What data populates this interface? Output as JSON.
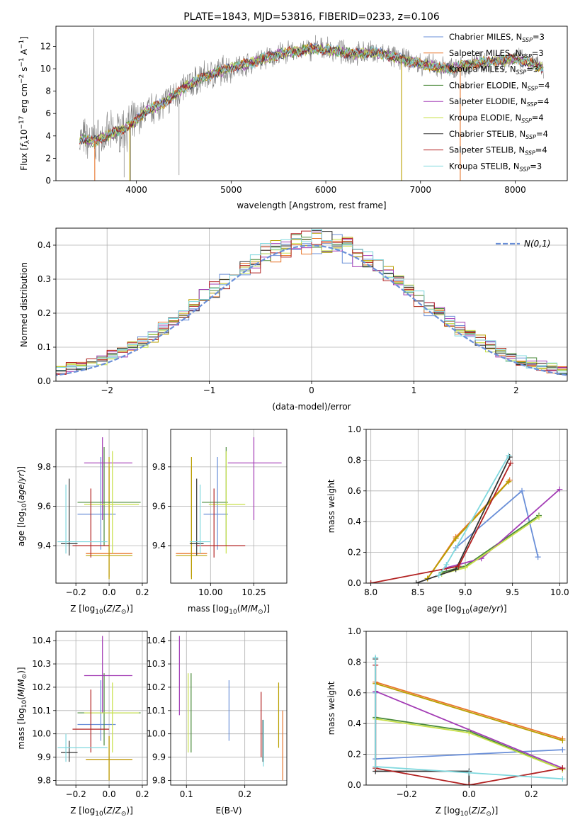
{
  "colors": {
    "chabrier_miles": "#6a8fd8",
    "salpeter_miles": "#e8762c",
    "kroupa_miles": "#b9a000",
    "chabrier_elodie": "#4a8a3a",
    "salpeter_elodie": "#a33cb5",
    "kroupa_elodie": "#c8e14a",
    "chabrier_stelib": "#333333",
    "salpeter_stelib": "#b22222",
    "kroupa_stelib": "#7fd8de",
    "gaussian": "#6a8fd8",
    "grid": "#b0b0b0"
  },
  "chart_data": [
    {
      "id": "spectrum",
      "type": "line",
      "title": "PLATE=1843, MJD=53816, FIBERID=0233, z=0.106",
      "xlabel": "wavelength [Angstrom, rest frame]",
      "ylabel": "Flux [f_λ 10^-17 erg cm^-2 s^-1 A^-1]",
      "xlim": [
        3150,
        8550
      ],
      "ylim": [
        0,
        13.8
      ],
      "xticks": [
        "4000",
        "5000",
        "6000",
        "7000",
        "8000"
      ],
      "yticks": [
        "0",
        "2",
        "4",
        "6",
        "8",
        "10",
        "12"
      ],
      "legend_position": "right",
      "legend": [
        {
          "key": "chabrier_miles",
          "label": "Chabrier MILES, N_SSP=3"
        },
        {
          "key": "salpeter_miles",
          "label": "Salpeter MILES, N_SSP=3"
        },
        {
          "key": "kroupa_miles",
          "label": "Kroupa MILES, N_SSP=3"
        },
        {
          "key": "chabrier_elodie",
          "label": "Chabrier ELODIE, N_SSP=4"
        },
        {
          "key": "salpeter_elodie",
          "label": "Salpeter ELODIE, N_SSP=4"
        },
        {
          "key": "kroupa_elodie",
          "label": "Kroupa ELODIE, N_SSP=4"
        },
        {
          "key": "chabrier_stelib",
          "label": "Chabrier STELIB, N_SSP=4"
        },
        {
          "key": "salpeter_stelib",
          "label": "Salpeter STELIB, N_SSP=4"
        },
        {
          "key": "kroupa_stelib",
          "label": "Kroupa STELIB, N_SSP=3"
        }
      ],
      "continuum": [
        [
          3400,
          3.8
        ],
        [
          3550,
          3.5
        ],
        [
          3750,
          4.2
        ],
        [
          3950,
          5.0
        ],
        [
          4100,
          6.2
        ],
        [
          4300,
          7.0
        ],
        [
          4500,
          8.3
        ],
        [
          4700,
          9.2
        ],
        [
          5000,
          10.1
        ],
        [
          5200,
          10.5
        ],
        [
          5500,
          11.3
        ],
        [
          5800,
          11.7
        ],
        [
          5900,
          11.8
        ],
        [
          6100,
          11.6
        ],
        [
          6300,
          11.3
        ],
        [
          6500,
          11.5
        ],
        [
          6700,
          11.1
        ],
        [
          7000,
          10.4
        ],
        [
          7300,
          10.0
        ],
        [
          7600,
          10.5
        ],
        [
          8000,
          10.9
        ],
        [
          8300,
          10.1
        ]
      ],
      "data_series_color": "#7f7f7f",
      "spikes": [
        [
          3550,
          13.6
        ],
        [
          3870,
          0.3
        ],
        [
          3940,
          0.0
        ],
        [
          4450,
          0.5
        ],
        [
          5890,
          13.0
        ],
        [
          6800,
          0.0
        ],
        [
          7420,
          0.0
        ]
      ]
    },
    {
      "id": "residuals",
      "type": "histogram",
      "xlabel": "(data-model)/error",
      "ylabel": "Normed distribution",
      "xlim": [
        -2.5,
        2.5
      ],
      "ylim": [
        0,
        0.45
      ],
      "xticks": [
        "−2",
        "−1",
        "0",
        "1",
        "2"
      ],
      "yticks": [
        "0.0",
        "0.1",
        "0.2",
        "0.3",
        "0.4"
      ],
      "bin_width": 0.1,
      "legend_label": "N(0,1)",
      "legend_position": "top-right"
    },
    {
      "id": "age_vs_z",
      "type": "errorbar",
      "xlabel": "Z [log10(Z/Z⊙)]",
      "ylabel": "age  [log10(age/yr)]",
      "xlim": [
        -0.32,
        0.23
      ],
      "ylim": [
        9.21,
        9.99
      ],
      "xticks": [
        "−0.2",
        "0.0",
        "0.2"
      ],
      "yticks": [
        "9.4",
        "9.6",
        "9.8"
      ],
      "points": [
        {
          "key": "chabrier_miles",
          "x": -0.05,
          "xerr": [
            0.14,
            0.09
          ],
          "y": 9.56,
          "yerr": [
            0.18,
            0.29
          ]
        },
        {
          "key": "salpeter_miles",
          "x": 0.0,
          "xerr": [
            0.14,
            0.14
          ],
          "y": 9.36,
          "yerr": [
            0.12,
            0.44
          ]
        },
        {
          "key": "kroupa_miles",
          "x": 0.0,
          "xerr": [
            0.14,
            0.14
          ],
          "y": 9.35,
          "yerr": [
            0.12,
            0.5
          ]
        },
        {
          "key": "chabrier_elodie",
          "x": -0.03,
          "xerr": [
            0.16,
            0.22
          ],
          "y": 9.62,
          "yerr": [
            0.22,
            0.28
          ]
        },
        {
          "key": "salpeter_elodie",
          "x": -0.04,
          "xerr": [
            0.11,
            0.18
          ],
          "y": 9.82,
          "yerr": [
            0.29,
            0.13
          ]
        },
        {
          "key": "kroupa_elodie",
          "x": 0.02,
          "xerr": [
            0.17,
            0.16
          ],
          "y": 9.61,
          "yerr": [
            0.25,
            0.27
          ]
        },
        {
          "key": "chabrier_stelib",
          "x": -0.24,
          "xerr": [
            0.05,
            0.05
          ],
          "y": 9.41,
          "yerr": [
            0.06,
            0.33
          ]
        },
        {
          "key": "salpeter_stelib",
          "x": -0.11,
          "xerr": [
            0.11,
            0.11
          ],
          "y": 9.4,
          "yerr": [
            0.06,
            0.29
          ]
        },
        {
          "key": "kroupa_stelib",
          "x": -0.26,
          "xerr": [
            0.05,
            0.25
          ],
          "y": 9.42,
          "yerr": [
            0.06,
            0.29
          ]
        }
      ]
    },
    {
      "id": "age_vs_mass",
      "type": "errorbar",
      "xlabel": "mass [log10(M/M⊙)]",
      "ylabel": "",
      "xlim": [
        9.77,
        10.44
      ],
      "ylim": [
        9.21,
        9.99
      ],
      "xticks": [
        "10.00",
        "10.25"
      ],
      "yticks": [
        "9.8",
        "9.6",
        "9.4"
      ],
      "points": [
        {
          "key": "chabrier_miles",
          "x": 10.04,
          "xerr": [
            0.08,
            0.06
          ],
          "y": 9.56,
          "yerr": [
            0.18,
            0.29
          ]
        },
        {
          "key": "salpeter_miles",
          "x": 9.89,
          "xerr": [
            0.09,
            0.09
          ],
          "y": 9.36,
          "yerr": [
            0.12,
            0.44
          ]
        },
        {
          "key": "kroupa_miles",
          "x": 9.89,
          "xerr": [
            0.09,
            0.09
          ],
          "y": 9.35,
          "yerr": [
            0.12,
            0.5
          ]
        },
        {
          "key": "chabrier_elodie",
          "x": 10.09,
          "xerr": [
            0.14,
            0.01
          ],
          "y": 9.62,
          "yerr": [
            0.22,
            0.28
          ]
        },
        {
          "key": "salpeter_elodie",
          "x": 10.25,
          "xerr": [
            0.15,
            0.16
          ],
          "y": 9.82,
          "yerr": [
            0.29,
            0.13
          ]
        },
        {
          "key": "kroupa_elodie",
          "x": 10.09,
          "xerr": [
            0.1,
            0.11
          ],
          "y": 9.61,
          "yerr": [
            0.25,
            0.27
          ]
        },
        {
          "key": "chabrier_stelib",
          "x": 9.92,
          "xerr": [
            0.04,
            0.04
          ],
          "y": 9.41,
          "yerr": [
            0.06,
            0.33
          ]
        },
        {
          "key": "salpeter_stelib",
          "x": 10.02,
          "xerr": [
            0.1,
            0.18
          ],
          "y": 9.4,
          "yerr": [
            0.06,
            0.29
          ]
        },
        {
          "key": "kroupa_stelib",
          "x": 9.94,
          "xerr": [
            0.06,
            0.06
          ],
          "y": 9.42,
          "yerr": [
            0.06,
            0.29
          ]
        }
      ]
    },
    {
      "id": "mass_weight_vs_age",
      "type": "line",
      "xlabel": "age  [log10(age/yr)]",
      "ylabel": "mass weight",
      "xlim": [
        7.95,
        10.08
      ],
      "ylim": [
        0,
        1.0
      ],
      "xticks": [
        "8.0",
        "8.5",
        "9.0",
        "9.5",
        "10.0"
      ],
      "yticks": [
        "0.0",
        "0.2",
        "0.4",
        "0.6",
        "0.8",
        "1.0"
      ],
      "series": [
        {
          "key": "chabrier_miles",
          "x": [
            8.9,
            9.6,
            9.77
          ],
          "y": [
            0.23,
            0.6,
            0.17
          ]
        },
        {
          "key": "salpeter_miles",
          "x": [
            8.6,
            8.9,
            9.47
          ],
          "y": [
            0.03,
            0.3,
            0.67
          ]
        },
        {
          "key": "kroupa_miles",
          "x": [
            8.6,
            8.9,
            9.46
          ],
          "y": [
            0.03,
            0.29,
            0.66
          ]
        },
        {
          "key": "chabrier_elodie",
          "x": [
            8.75,
            9.0,
            9.78
          ],
          "y": [
            0.07,
            0.11,
            0.44
          ]
        },
        {
          "key": "salpeter_elodie",
          "x": [
            8.8,
            9.17,
            10.0
          ],
          "y": [
            0.1,
            0.16,
            0.61
          ]
        },
        {
          "key": "kroupa_elodie",
          "x": [
            8.75,
            9.0,
            9.78
          ],
          "y": [
            0.06,
            0.1,
            0.43
          ]
        },
        {
          "key": "chabrier_stelib",
          "x": [
            8.48,
            8.9,
            9.47
          ],
          "y": [
            0.0,
            0.09,
            0.82
          ]
        },
        {
          "key": "salpeter_stelib",
          "x": [
            8.0,
            8.93,
            9.48
          ],
          "y": [
            0.0,
            0.11,
            0.78
          ]
        },
        {
          "key": "kroupa_stelib",
          "x": [
            8.72,
            8.8,
            9.46
          ],
          "y": [
            0.05,
            0.12,
            0.83
          ]
        }
      ]
    },
    {
      "id": "mass_vs_z",
      "type": "errorbar",
      "xlabel": "Z [log10(Z/Z⊙)]",
      "ylabel": "mass [log10(M/M⊙)]",
      "xlim": [
        -0.32,
        0.23
      ],
      "ylim": [
        9.78,
        10.44
      ],
      "xticks": [
        "−0.2",
        "0.0",
        "0.2"
      ],
      "yticks": [
        "9.8",
        "9.9",
        "10.0",
        "10.1",
        "10.2",
        "10.3",
        "10.4"
      ],
      "points": [
        {
          "key": "chabrier_miles",
          "x": -0.05,
          "xerr": [
            0.14,
            0.09
          ],
          "y": 10.04,
          "yerr": [
            0.07,
            0.19
          ]
        },
        {
          "key": "salpeter_miles",
          "x": 0.0,
          "xerr": [
            0.14,
            0.14
          ],
          "y": 9.89,
          "yerr": [
            0.09,
            0.1
          ]
        },
        {
          "key": "kroupa_miles",
          "x": 0.0,
          "xerr": [
            0.14,
            0.14
          ],
          "y": 9.89,
          "yerr": [
            0.09,
            0.1
          ]
        },
        {
          "key": "chabrier_elodie",
          "x": -0.03,
          "xerr": [
            0.16,
            0.22
          ],
          "y": 10.09,
          "yerr": [
            0.14,
            0.17
          ]
        },
        {
          "key": "salpeter_elodie",
          "x": -0.04,
          "xerr": [
            0.11,
            0.18
          ],
          "y": 10.25,
          "yerr": [
            0.16,
            0.17
          ]
        },
        {
          "key": "kroupa_elodie",
          "x": 0.02,
          "xerr": [
            0.17,
            0.16
          ],
          "y": 10.09,
          "yerr": [
            0.17,
            0.13
          ]
        },
        {
          "key": "chabrier_stelib",
          "x": -0.24,
          "xerr": [
            0.05,
            0.05
          ],
          "y": 9.92,
          "yerr": [
            0.04,
            0.05
          ]
        },
        {
          "key": "salpeter_stelib",
          "x": -0.11,
          "xerr": [
            0.11,
            0.11
          ],
          "y": 10.02,
          "yerr": [
            0.1,
            0.17
          ]
        },
        {
          "key": "kroupa_stelib",
          "x": -0.26,
          "xerr": [
            0.05,
            0.25
          ],
          "y": 9.94,
          "yerr": [
            0.06,
            0.06
          ]
        }
      ]
    },
    {
      "id": "mass_vs_ebv",
      "type": "errorbar",
      "xlabel": "E(B-V)",
      "ylabel": "",
      "xlim": [
        0.073,
        0.272
      ],
      "ylim": [
        9.78,
        10.44
      ],
      "xticks": [
        "0.1",
        "0.2"
      ],
      "yticks": [
        "9.8",
        "9.9",
        "10.0",
        "10.1",
        "10.2",
        "10.3",
        "10.4"
      ],
      "points": [
        {
          "key": "chabrier_miles",
          "x": 0.173,
          "y": 10.1,
          "yerr": [
            0.13,
            0.13
          ]
        },
        {
          "key": "salpeter_miles",
          "x": 0.265,
          "y": 9.95,
          "yerr": [
            0.15,
            0.15
          ]
        },
        {
          "key": "kroupa_miles",
          "x": 0.258,
          "y": 10.08,
          "yerr": [
            0.14,
            0.14
          ]
        },
        {
          "key": "chabrier_elodie",
          "x": 0.108,
          "y": 10.09,
          "yerr": [
            0.17,
            0.17
          ]
        },
        {
          "key": "salpeter_elodie",
          "x": 0.088,
          "y": 10.25,
          "yerr": [
            0.17,
            0.17
          ]
        },
        {
          "key": "kroupa_elodie",
          "x": 0.103,
          "y": 10.09,
          "yerr": [
            0.17,
            0.17
          ]
        },
        {
          "key": "chabrier_stelib",
          "x": 0.231,
          "y": 9.97,
          "yerr": [
            0.09,
            0.09
          ]
        },
        {
          "key": "salpeter_stelib",
          "x": 0.228,
          "y": 10.04,
          "yerr": [
            0.14,
            0.14
          ]
        },
        {
          "key": "kroupa_stelib",
          "x": 0.232,
          "y": 9.96,
          "yerr": [
            0.1,
            0.1
          ]
        }
      ]
    },
    {
      "id": "mass_weight_vs_z",
      "type": "line",
      "xlabel": "Z [log10(Z/Z⊙)]",
      "ylabel": "mass weight",
      "xlim": [
        -0.33,
        0.315
      ],
      "ylim": [
        0,
        1.0
      ],
      "xticks": [
        "−0.2",
        "0.0",
        "0.2"
      ],
      "yticks": [
        "0.0",
        "0.2",
        "0.4",
        "0.6",
        "0.8",
        "1.0"
      ],
      "series": [
        {
          "key": "chabrier_miles",
          "x": [
            -0.3,
            -0.3,
            0.3
          ],
          "y": [
            0.6,
            0.17,
            0.23
          ]
        },
        {
          "key": "salpeter_miles",
          "x": [
            -0.3,
            0.3
          ],
          "y": [
            0.67,
            0.3
          ]
        },
        {
          "key": "kroupa_miles",
          "x": [
            -0.3,
            0.3
          ],
          "y": [
            0.66,
            0.29
          ]
        },
        {
          "key": "chabrier_elodie",
          "x": [
            -0.3,
            0.0,
            0.3
          ],
          "y": [
            0.44,
            0.35,
            0.1
          ]
        },
        {
          "key": "salpeter_elodie",
          "x": [
            -0.3,
            0.3
          ],
          "y": [
            0.61,
            0.11
          ]
        },
        {
          "key": "kroupa_elodie",
          "x": [
            -0.3,
            0.0,
            0.3
          ],
          "y": [
            0.43,
            0.34,
            0.1
          ]
        },
        {
          "key": "chabrier_stelib",
          "x": [
            -0.3,
            -0.3,
            0.0,
            0.0
          ],
          "y": [
            0.82,
            0.09,
            0.09,
            0.0
          ]
        },
        {
          "key": "salpeter_stelib",
          "x": [
            -0.3,
            -0.3,
            0.0,
            0.3
          ],
          "y": [
            0.78,
            0.11,
            0.0,
            0.11
          ]
        },
        {
          "key": "kroupa_stelib",
          "x": [
            -0.3,
            -0.3,
            0.0,
            0.3
          ],
          "y": [
            0.83,
            0.12,
            0.08,
            0.04
          ]
        }
      ]
    }
  ]
}
